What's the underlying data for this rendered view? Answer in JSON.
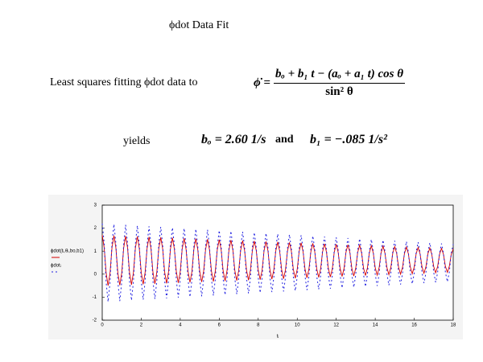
{
  "title": "ϕdot Data Fit",
  "intro": "Least squares fitting ϕdot data to",
  "formula": {
    "lhs": "ϕ̇ =",
    "numerator": "bₒ + b₁ t − (aₒ + a₁ t) cos θ",
    "denominator": "sin² θ"
  },
  "results": {
    "yields": "yields",
    "b0": "bₒ = 2.60 1/s",
    "and": "and",
    "b1": "b₁ = −.085 1/s²"
  },
  "chart_data": {
    "type": "line",
    "xlabel": "tᵢ",
    "xlim": [
      0,
      18
    ],
    "xticks": [
      0,
      2,
      4,
      6,
      8,
      10,
      12,
      14,
      16,
      18
    ],
    "ylim": [
      -2,
      3
    ],
    "yticks": [
      -2,
      -1,
      0,
      1,
      2,
      3
    ],
    "x": [
      0,
      0.1,
      0.2,
      0.3,
      0.4,
      0.5,
      0.6,
      0.7,
      0.8,
      0.9,
      1,
      1.1,
      1.2,
      1.3,
      1.4,
      1.5,
      1.6,
      1.7,
      1.8,
      1.9,
      2,
      2.1,
      2.2,
      2.3,
      2.4,
      2.5,
      2.6,
      2.7,
      2.8,
      2.9,
      3,
      3.1,
      3.2,
      3.3,
      3.4,
      3.5,
      3.6,
      3.7,
      3.8,
      3.9,
      4,
      4.1,
      4.2,
      4.3,
      4.4,
      4.5,
      4.6,
      4.7,
      4.8,
      4.9,
      5,
      5.1,
      5.2,
      5.3,
      5.4,
      5.5,
      5.6,
      5.7,
      5.8,
      5.9,
      6,
      6.1,
      6.2,
      6.3,
      6.4,
      6.5,
      6.6,
      6.7,
      6.8,
      6.9,
      7,
      7.1,
      7.2,
      7.3,
      7.4,
      7.5,
      7.6,
      7.7,
      7.8,
      7.9,
      8,
      8.1,
      8.2,
      8.3,
      8.4,
      8.5,
      8.6,
      8.7,
      8.8,
      8.9,
      9,
      9.1,
      9.2,
      9.3,
      9.4,
      9.5,
      9.6,
      9.7,
      9.8,
      9.9,
      10,
      10.1,
      10.2,
      10.3,
      10.4,
      10.5,
      10.6,
      10.7,
      10.8,
      10.9,
      11,
      11.1,
      11.2,
      11.3,
      11.4,
      11.5,
      11.6,
      11.7,
      11.8,
      11.9,
      12,
      12.1,
      12.2,
      12.3,
      12.4,
      12.5,
      12.6,
      12.7,
      12.8,
      12.9,
      13,
      13.1,
      13.2,
      13.3,
      13.4,
      13.5,
      13.6,
      13.7,
      13.8,
      13.9,
      14,
      14.1,
      14.2,
      14.3,
      14.4,
      14.5,
      14.6,
      14.7,
      14.8,
      14.9,
      15,
      15.1,
      15.2,
      15.3,
      15.4,
      15.5,
      15.6,
      15.7,
      15.8,
      15.9,
      16,
      16.1,
      16.2,
      16.3,
      16.4,
      16.5,
      16.6,
      16.7,
      16.8,
      16.9,
      17,
      17.1,
      17.2,
      17.3,
      17.4,
      17.5,
      17.6,
      17.7,
      17.8,
      17.9,
      18
    ],
    "series": [
      {
        "name": "ϕdot(tᵢ,θᵢ,bo,b1)",
        "color": "#d40000",
        "dash": false,
        "values": [
          1.7,
          1.15,
          0.05,
          -0.5,
          0.05,
          1.15,
          1.68,
          1.14,
          0.06,
          -0.48,
          0.06,
          1.14,
          1.66,
          1.13,
          0.07,
          -0.46,
          0.07,
          1.13,
          1.64,
          1.12,
          0.08,
          -0.44,
          0.08,
          1.12,
          1.62,
          1.11,
          0.09,
          -0.42,
          0.09,
          1.11,
          1.6,
          1.1,
          0.1,
          -0.4,
          0.1,
          1.1,
          1.58,
          1.09,
          0.11,
          -0.38,
          0.11,
          1.09,
          1.56,
          1.08,
          0.12,
          -0.36,
          0.12,
          1.08,
          1.54,
          1.07,
          0.13,
          -0.34,
          0.13,
          1.07,
          1.52,
          1.06,
          0.14,
          -0.32,
          0.14,
          1.06,
          1.5,
          1.05,
          0.15,
          -0.3,
          0.15,
          1.05,
          1.48,
          1.04,
          0.16,
          -0.28,
          0.16,
          1.04,
          1.46,
          1.03,
          0.17,
          -0.26,
          0.17,
          1.03,
          1.44,
          1.02,
          0.18,
          -0.24,
          0.18,
          1.02,
          1.42,
          1.01,
          0.19,
          -0.22,
          0.19,
          1.01,
          1.4,
          1.0,
          0.2,
          -0.2,
          0.2,
          1.0,
          1.38,
          0.99,
          0.21,
          -0.18,
          0.21,
          0.99,
          1.36,
          0.98,
          0.22,
          -0.16,
          0.22,
          0.98,
          1.34,
          0.97,
          0.23,
          -0.14,
          0.23,
          0.97,
          1.32,
          0.96,
          0.24,
          -0.12,
          0.24,
          0.96,
          1.3,
          0.95,
          0.25,
          -0.1,
          0.25,
          0.95,
          1.28,
          0.94,
          0.26,
          -0.08,
          0.26,
          0.94,
          1.26,
          0.93,
          0.27,
          -0.06,
          0.27,
          0.93,
          1.24,
          0.92,
          0.28,
          -0.04,
          0.28,
          0.92,
          1.22,
          0.91,
          0.29,
          -0.02,
          0.29,
          0.91,
          1.2,
          0.9,
          0.3,
          0.0,
          0.3,
          0.9,
          1.18,
          0.89,
          0.31,
          0.02,
          0.31,
          0.89,
          1.16,
          0.88,
          0.32,
          0.04,
          0.32,
          0.88,
          1.14,
          0.87,
          0.33,
          0.06,
          0.33,
          0.87,
          1.12,
          0.86,
          0.34,
          0.08,
          0.34,
          0.86,
          1.1
        ]
      },
      {
        "name": "ϕdotᵢ",
        "color": "#1f1fe0",
        "dash": true,
        "values": [
          2.2,
          1.35,
          -0.35,
          -1.2,
          -0.35,
          1.35,
          2.17,
          1.335,
          -0.335,
          -1.17,
          -0.335,
          1.335,
          2.14,
          1.32,
          -0.32,
          -1.14,
          -0.32,
          1.32,
          2.11,
          1.305,
          -0.305,
          -1.11,
          -0.305,
          1.305,
          2.08,
          1.29,
          -0.29,
          -1.08,
          -0.29,
          1.29,
          2.05,
          1.275,
          -0.275,
          -1.05,
          -0.275,
          1.275,
          2.02,
          1.26,
          -0.26,
          -1.02,
          -0.26,
          1.26,
          1.99,
          1.245,
          -0.245,
          -0.99,
          -0.245,
          1.245,
          1.96,
          1.23,
          -0.23,
          -0.96,
          -0.23,
          1.23,
          1.93,
          1.215,
          -0.215,
          -0.93,
          -0.215,
          1.215,
          1.9,
          1.2,
          -0.2,
          -0.9,
          -0.2,
          1.2,
          1.87,
          1.185,
          -0.185,
          -0.87,
          -0.185,
          1.185,
          1.84,
          1.17,
          -0.17,
          -0.84,
          -0.17,
          1.17,
          1.81,
          1.155,
          -0.155,
          -0.81,
          -0.155,
          1.155,
          1.78,
          1.14,
          -0.14,
          -0.78,
          -0.14,
          1.14,
          1.75,
          1.125,
          -0.125,
          -0.75,
          -0.125,
          1.125,
          1.72,
          1.11,
          -0.11,
          -0.72,
          -0.11,
          1.11,
          1.69,
          1.095,
          -0.095,
          -0.69,
          -0.095,
          1.095,
          1.66,
          1.08,
          -0.08,
          -0.66,
          -0.08,
          1.08,
          1.63,
          1.065,
          -0.065,
          -0.63,
          -0.065,
          1.065,
          1.6,
          1.05,
          -0.05,
          -0.6,
          -0.05,
          1.05,
          1.57,
          1.035,
          -0.035,
          -0.57,
          -0.035,
          1.035,
          1.54,
          1.02,
          -0.02,
          -0.54,
          -0.02,
          1.02,
          1.51,
          1.005,
          -0.005,
          -0.51,
          -0.005,
          1.005,
          1.48,
          0.99,
          0.01,
          -0.48,
          0.01,
          0.99,
          1.45,
          0.975,
          0.025,
          -0.45,
          0.025,
          0.975,
          1.42,
          0.96,
          0.04,
          -0.42,
          0.04,
          0.96,
          1.39,
          0.945,
          0.055,
          -0.39,
          0.055,
          0.945,
          1.36,
          0.93,
          0.07,
          -0.36,
          0.07,
          0.93,
          1.33,
          0.915,
          0.085,
          -0.33,
          0.085,
          0.915,
          1.3
        ]
      }
    ]
  }
}
